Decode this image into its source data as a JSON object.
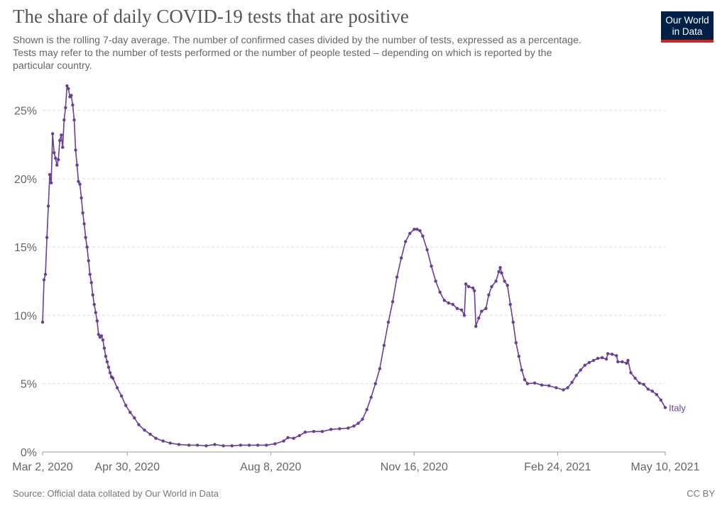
{
  "header": {
    "title": "The share of daily COVID-19 tests that are positive",
    "subtitle_lines": [
      "Shown is the rolling 7-day average. The number of confirmed cases divided by the number of tests, expressed as a percentage.",
      "Tests may refer to the number of tests performed or the number of people tested – depending on which is reported by the",
      "particular country."
    ]
  },
  "logo": {
    "line1": "Our World",
    "line2": "in Data"
  },
  "footer": {
    "source": "Source: Official data collated by Our World in Data",
    "license": "CC BY"
  },
  "colors": {
    "series": "#6a3d9a",
    "grid": "#dddddd",
    "axis": "#999999",
    "logo_bg": "#002147",
    "logo_accent": "#ce261e"
  },
  "chart_data": {
    "type": "line",
    "title": "The share of daily COVID-19 tests that are positive",
    "x_range": [
      "2020-03-02",
      "2021-05-10"
    ],
    "ylim": [
      0,
      27
    ],
    "y_ticks": [
      0,
      5,
      10,
      15,
      20,
      25
    ],
    "y_tick_labels": [
      "0%",
      "5%",
      "10%",
      "15%",
      "20%",
      "25%"
    ],
    "x_ticks": [
      "2020-03-02",
      "2020-04-30",
      "2020-08-08",
      "2020-11-16",
      "2021-02-24",
      "2021-05-10"
    ],
    "x_tick_labels": [
      "Mar 2, 2020",
      "Apr 30, 2020",
      "Aug 8, 2020",
      "Nov 16, 2020",
      "Feb 24, 2021",
      "May 10, 2021"
    ],
    "grid": "horizontal dashed",
    "series": [
      {
        "name": "Italy",
        "points": [
          [
            "2020-03-02",
            9.5
          ],
          [
            "2020-03-03",
            12.6
          ],
          [
            "2020-03-04",
            13.0
          ],
          [
            "2020-03-05",
            15.7
          ],
          [
            "2020-03-06",
            18.0
          ],
          [
            "2020-03-07",
            20.3
          ],
          [
            "2020-03-08",
            19.7
          ],
          [
            "2020-03-09",
            23.3
          ],
          [
            "2020-03-10",
            21.9
          ],
          [
            "2020-03-11",
            21.5
          ],
          [
            "2020-03-12",
            21.0
          ],
          [
            "2020-03-13",
            21.4
          ],
          [
            "2020-03-14",
            22.8
          ],
          [
            "2020-03-15",
            23.2
          ],
          [
            "2020-03-16",
            22.3
          ],
          [
            "2020-03-17",
            24.3
          ],
          [
            "2020-03-18",
            25.2
          ],
          [
            "2020-03-19",
            26.8
          ],
          [
            "2020-03-20",
            26.6
          ],
          [
            "2020-03-21",
            26.0
          ],
          [
            "2020-03-22",
            26.1
          ],
          [
            "2020-03-23",
            25.4
          ],
          [
            "2020-03-24",
            24.3
          ],
          [
            "2020-03-25",
            22.1
          ],
          [
            "2020-03-26",
            21.0
          ],
          [
            "2020-03-27",
            19.8
          ],
          [
            "2020-03-28",
            19.6
          ],
          [
            "2020-03-29",
            18.6
          ],
          [
            "2020-03-30",
            17.5
          ],
          [
            "2020-03-31",
            16.7
          ],
          [
            "2020-04-01",
            15.7
          ],
          [
            "2020-04-02",
            15.0
          ],
          [
            "2020-04-03",
            14.0
          ],
          [
            "2020-04-04",
            13.0
          ],
          [
            "2020-04-05",
            12.4
          ],
          [
            "2020-04-06",
            11.5
          ],
          [
            "2020-04-07",
            10.8
          ],
          [
            "2020-04-08",
            10.2
          ],
          [
            "2020-04-09",
            9.6
          ],
          [
            "2020-04-10",
            8.6
          ],
          [
            "2020-04-11",
            8.4
          ],
          [
            "2020-04-12",
            8.5
          ],
          [
            "2020-04-13",
            8.2
          ],
          [
            "2020-04-14",
            7.6
          ],
          [
            "2020-04-15",
            7.0
          ],
          [
            "2020-04-16",
            6.6
          ],
          [
            "2020-04-17",
            6.2
          ],
          [
            "2020-04-18",
            5.8
          ],
          [
            "2020-04-19",
            5.5
          ],
          [
            "2020-04-20",
            5.4
          ],
          [
            "2020-04-23",
            4.7
          ],
          [
            "2020-04-26",
            4.1
          ],
          [
            "2020-04-29",
            3.4
          ],
          [
            "2020-05-02",
            2.9
          ],
          [
            "2020-05-05",
            2.5
          ],
          [
            "2020-05-08",
            2.0
          ],
          [
            "2020-05-12",
            1.6
          ],
          [
            "2020-05-16",
            1.3
          ],
          [
            "2020-05-20",
            1.0
          ],
          [
            "2020-05-25",
            0.8
          ],
          [
            "2020-05-30",
            0.65
          ],
          [
            "2020-06-05",
            0.55
          ],
          [
            "2020-06-12",
            0.5
          ],
          [
            "2020-06-18",
            0.5
          ],
          [
            "2020-06-24",
            0.45
          ],
          [
            "2020-06-30",
            0.55
          ],
          [
            "2020-07-06",
            0.45
          ],
          [
            "2020-07-12",
            0.45
          ],
          [
            "2020-07-18",
            0.5
          ],
          [
            "2020-07-24",
            0.5
          ],
          [
            "2020-07-30",
            0.5
          ],
          [
            "2020-08-05",
            0.5
          ],
          [
            "2020-08-11",
            0.6
          ],
          [
            "2020-08-17",
            0.8
          ],
          [
            "2020-08-20",
            1.05
          ],
          [
            "2020-08-24",
            1.0
          ],
          [
            "2020-08-28",
            1.2
          ],
          [
            "2020-09-01",
            1.45
          ],
          [
            "2020-09-07",
            1.5
          ],
          [
            "2020-09-13",
            1.5
          ],
          [
            "2020-09-19",
            1.65
          ],
          [
            "2020-09-25",
            1.7
          ],
          [
            "2020-10-01",
            1.75
          ],
          [
            "2020-10-05",
            1.9
          ],
          [
            "2020-10-08",
            2.1
          ],
          [
            "2020-10-11",
            2.4
          ],
          [
            "2020-10-14",
            3.1
          ],
          [
            "2020-10-17",
            4.0
          ],
          [
            "2020-10-20",
            5.0
          ],
          [
            "2020-10-23",
            6.1
          ],
          [
            "2020-10-26",
            7.8
          ],
          [
            "2020-10-29",
            9.5
          ],
          [
            "2020-11-01",
            11.0
          ],
          [
            "2020-11-04",
            12.8
          ],
          [
            "2020-11-07",
            14.2
          ],
          [
            "2020-11-10",
            15.4
          ],
          [
            "2020-11-13",
            16.0
          ],
          [
            "2020-11-16",
            16.3
          ],
          [
            "2020-11-18",
            16.3
          ],
          [
            "2020-11-20",
            16.2
          ],
          [
            "2020-11-22",
            15.8
          ],
          [
            "2020-11-25",
            14.8
          ],
          [
            "2020-11-28",
            13.6
          ],
          [
            "2020-12-01",
            12.5
          ],
          [
            "2020-12-04",
            11.7
          ],
          [
            "2020-12-07",
            11.1
          ],
          [
            "2020-12-10",
            10.9
          ],
          [
            "2020-12-13",
            10.8
          ],
          [
            "2020-12-16",
            10.5
          ],
          [
            "2020-12-19",
            10.4
          ],
          [
            "2020-12-21",
            10.0
          ],
          [
            "2020-12-22",
            12.3
          ],
          [
            "2020-12-24",
            12.1
          ],
          [
            "2020-12-27",
            12.0
          ],
          [
            "2020-12-28",
            11.8
          ],
          [
            "2020-12-29",
            9.2
          ],
          [
            "2020-12-31",
            9.8
          ],
          [
            "2021-01-02",
            10.3
          ],
          [
            "2021-01-05",
            10.5
          ],
          [
            "2021-01-07",
            11.5
          ],
          [
            "2021-01-09",
            12.1
          ],
          [
            "2021-01-12",
            12.5
          ],
          [
            "2021-01-14",
            13.2
          ],
          [
            "2021-01-15",
            13.5
          ],
          [
            "2021-01-16",
            13.1
          ],
          [
            "2021-01-18",
            12.5
          ],
          [
            "2021-01-20",
            12.2
          ],
          [
            "2021-01-22",
            10.8
          ],
          [
            "2021-01-24",
            9.5
          ],
          [
            "2021-01-26",
            8.0
          ],
          [
            "2021-01-28",
            7.0
          ],
          [
            "2021-01-30",
            6.0
          ],
          [
            "2021-02-01",
            5.3
          ],
          [
            "2021-02-03",
            5.0
          ],
          [
            "2021-02-08",
            5.05
          ],
          [
            "2021-02-13",
            4.9
          ],
          [
            "2021-02-18",
            4.85
          ],
          [
            "2021-02-23",
            4.7
          ],
          [
            "2021-02-28",
            4.55
          ],
          [
            "2021-03-03",
            4.7
          ],
          [
            "2021-03-06",
            5.1
          ],
          [
            "2021-03-09",
            5.6
          ],
          [
            "2021-03-12",
            6.0
          ],
          [
            "2021-03-15",
            6.35
          ],
          [
            "2021-03-18",
            6.55
          ],
          [
            "2021-03-21",
            6.7
          ],
          [
            "2021-03-24",
            6.85
          ],
          [
            "2021-03-27",
            6.9
          ],
          [
            "2021-03-30",
            6.8
          ],
          [
            "2021-03-31",
            7.2
          ],
          [
            "2021-04-03",
            7.15
          ],
          [
            "2021-04-06",
            7.05
          ],
          [
            "2021-04-07",
            6.6
          ],
          [
            "2021-04-10",
            6.6
          ],
          [
            "2021-04-13",
            6.5
          ],
          [
            "2021-04-14",
            6.7
          ],
          [
            "2021-04-16",
            5.8
          ],
          [
            "2021-04-19",
            5.4
          ],
          [
            "2021-04-22",
            5.05
          ],
          [
            "2021-04-25",
            4.95
          ],
          [
            "2021-04-28",
            4.6
          ],
          [
            "2021-05-01",
            4.45
          ],
          [
            "2021-05-04",
            4.2
          ],
          [
            "2021-05-07",
            3.8
          ],
          [
            "2021-05-10",
            3.25
          ]
        ]
      }
    ]
  }
}
